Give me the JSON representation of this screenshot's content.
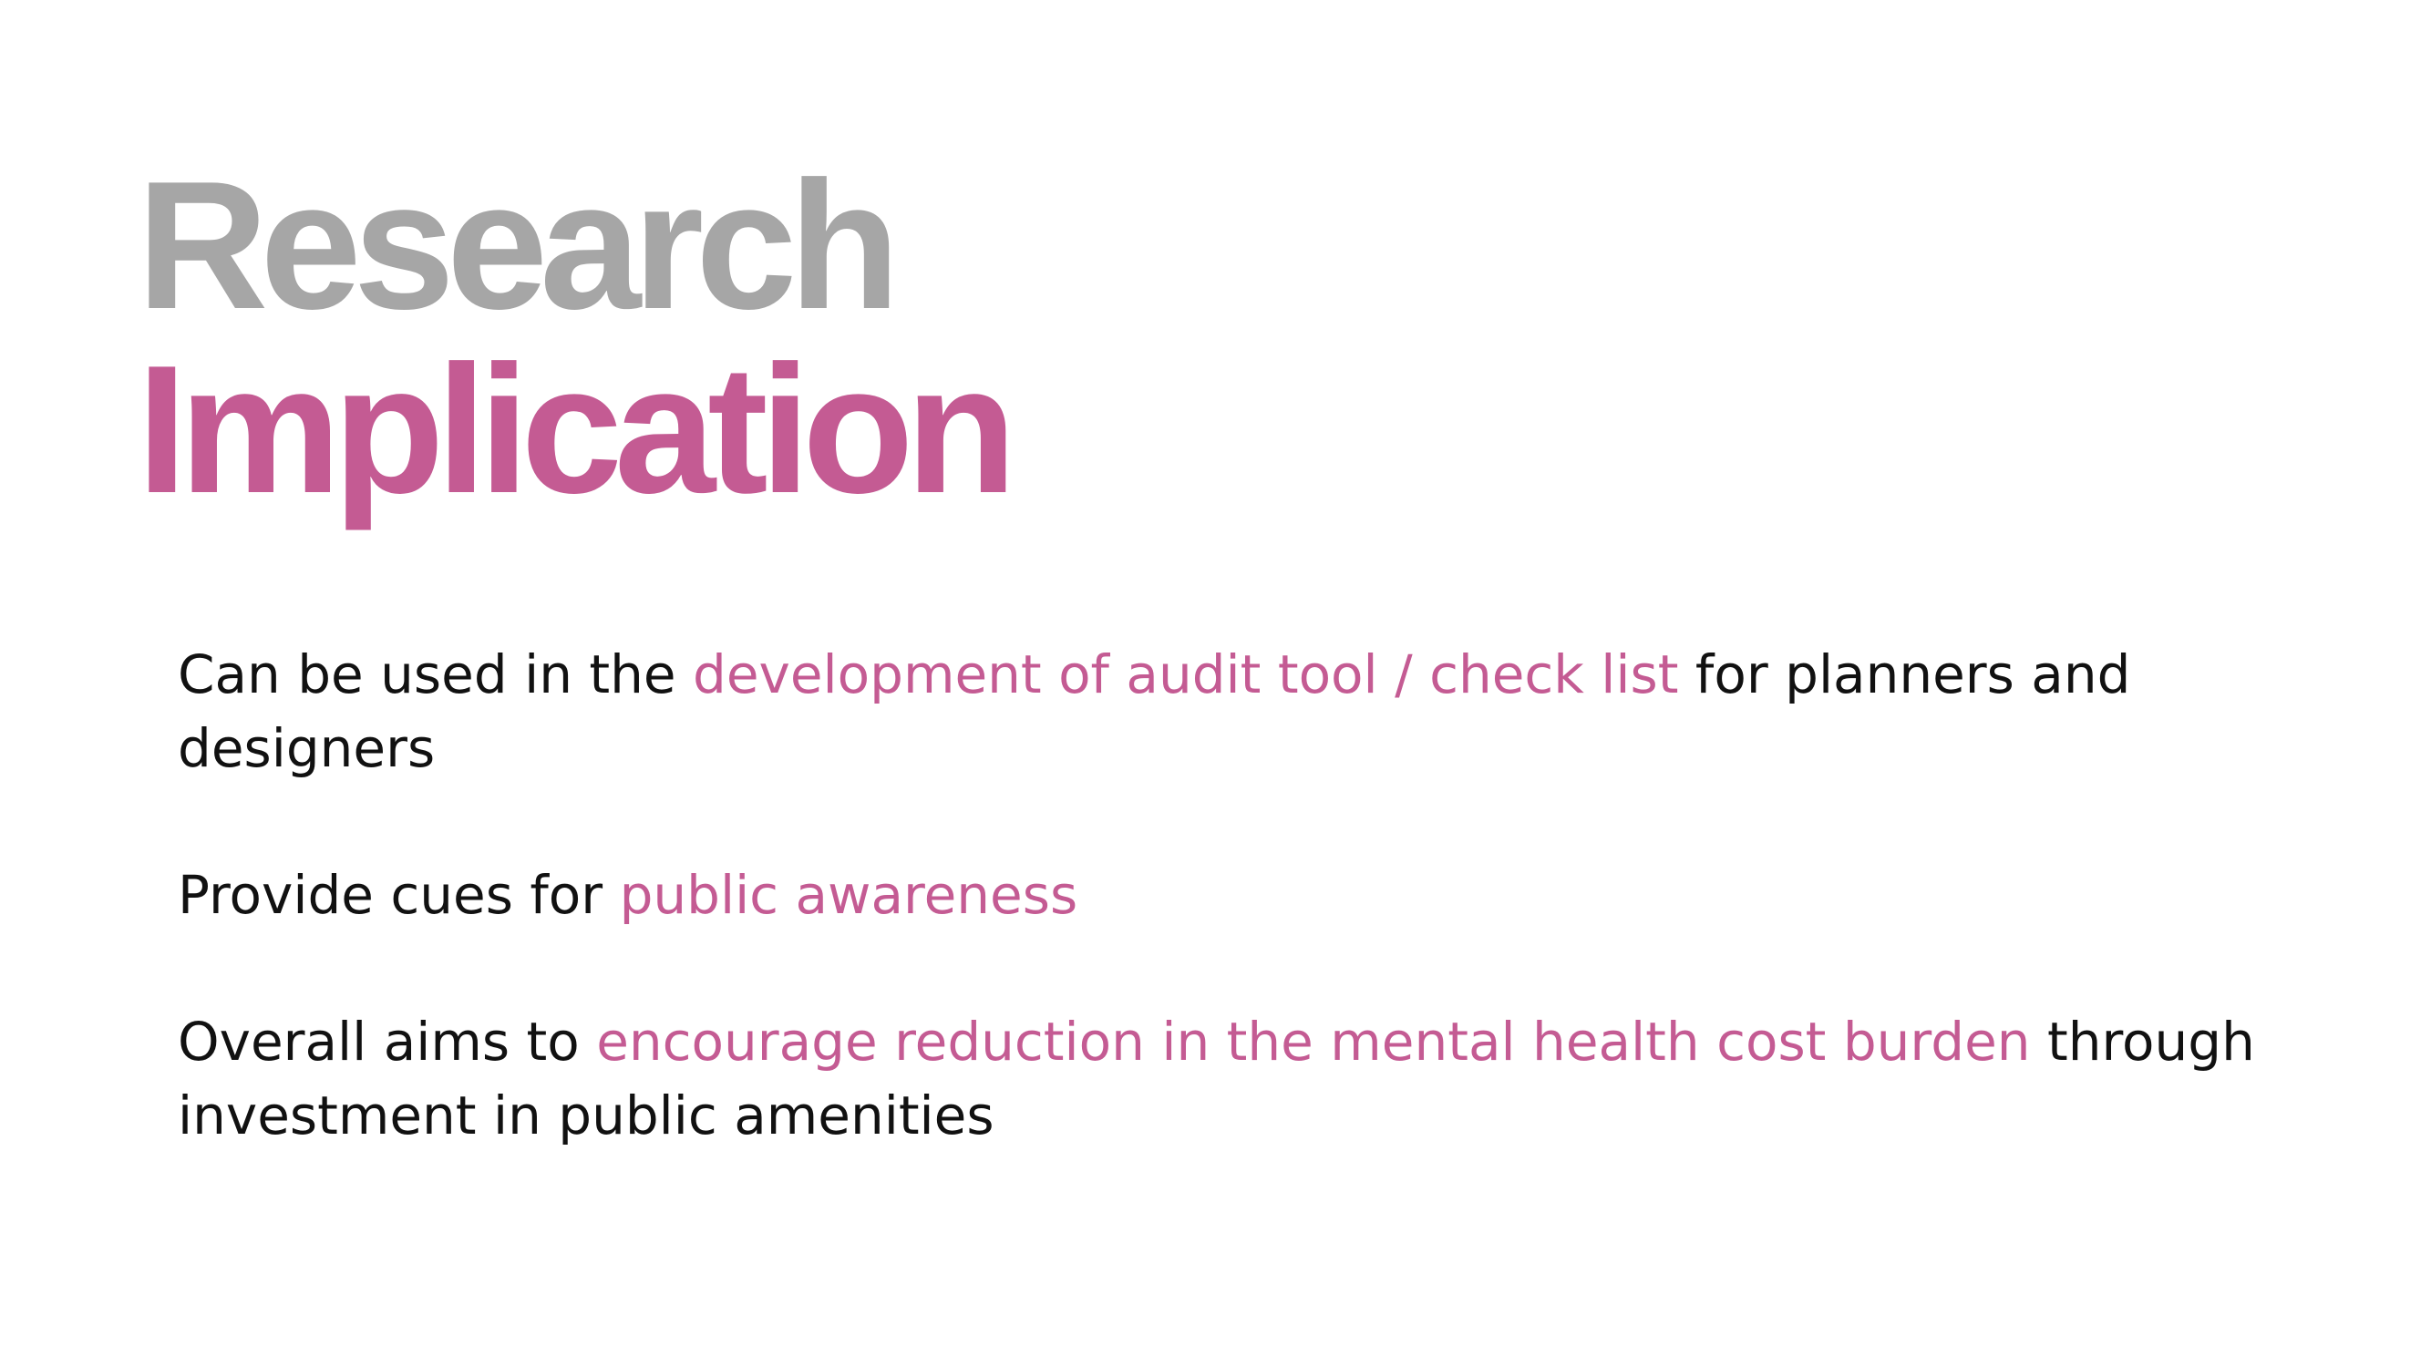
{
  "title": {
    "line1": "Research",
    "line2": "Implication"
  },
  "colors": {
    "title_grey": "#a6a6a6",
    "accent_pink": "#c45b93",
    "body_text": "#111111",
    "background": "#ffffff"
  },
  "points": [
    {
      "pre": "Can be used in the ",
      "highlight": "development of audit tool / check list",
      "post": " for planners and designers"
    },
    {
      "pre": "Provide cues for ",
      "highlight": "public awareness",
      "post": ""
    },
    {
      "pre": "Overall aims to ",
      "highlight": "encourage reduction in the mental health cost burden",
      "post": " through investment in public amenities"
    }
  ]
}
